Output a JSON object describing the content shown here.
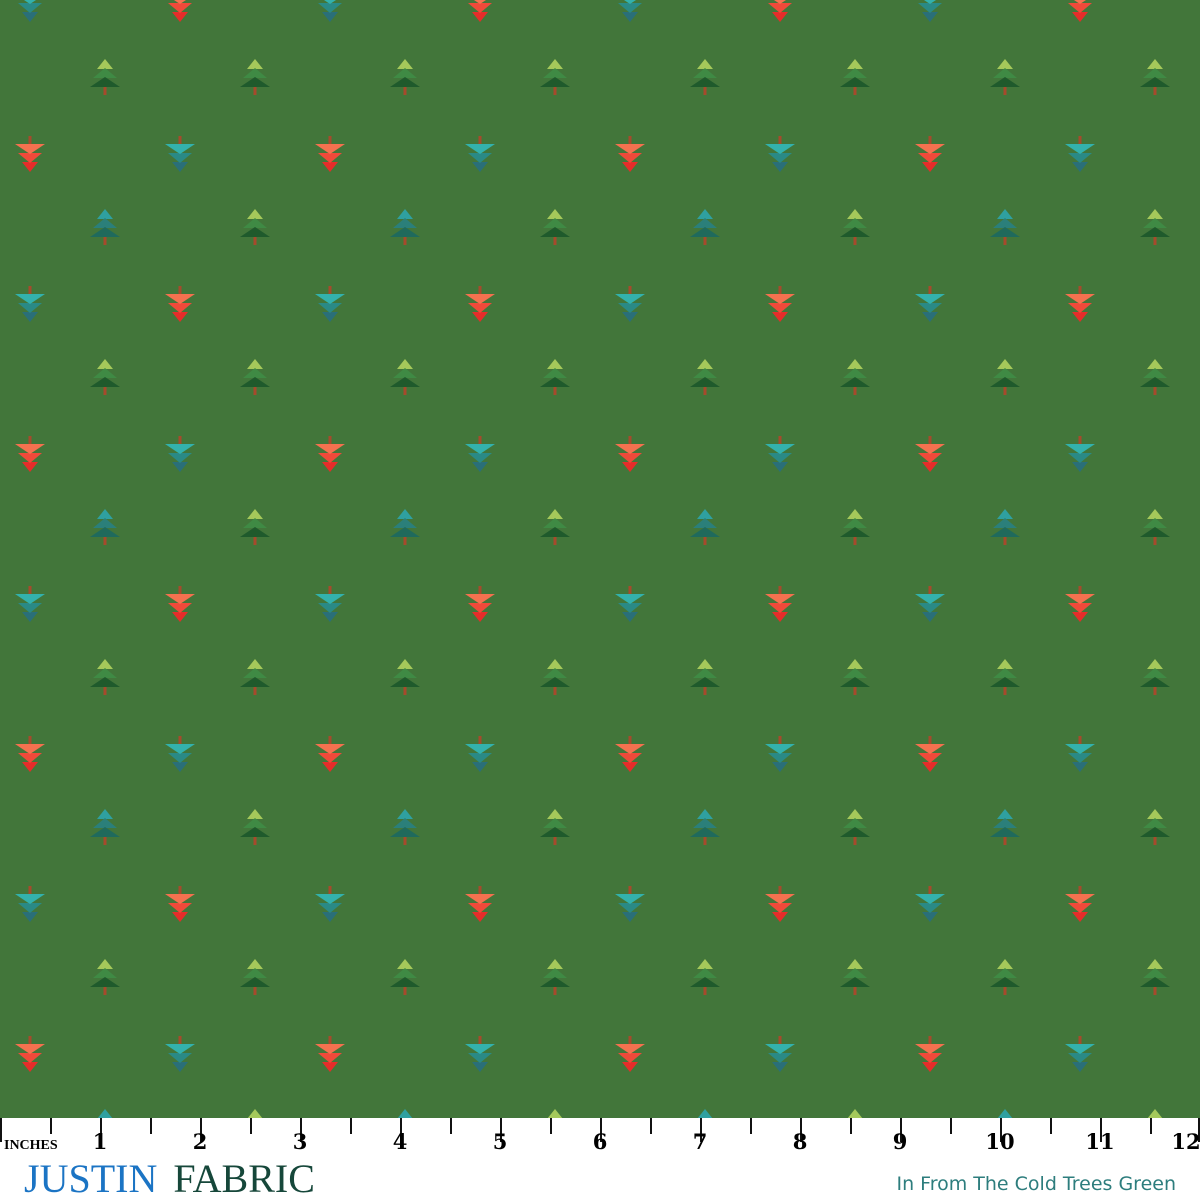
{
  "fabric": {
    "background": "#42763a",
    "palettes": {
      "green": [
        "#a4c85a",
        "#3f8a44",
        "#1f5a2c"
      ],
      "teal": [
        "#2fa0a0",
        "#2b7f7a",
        "#1f6a5c"
      ],
      "red": [
        "#e42d2a",
        "#ef4a3a",
        "#f4714f"
      ],
      "tealdown": [
        "#2a6f78",
        "#2a8a86",
        "#33b1ac"
      ],
      "trunk": "#a64a2c"
    }
  },
  "ruler": {
    "unit_label": "INCHES",
    "numbers": [
      "1",
      "2",
      "3",
      "4",
      "5",
      "6",
      "7",
      "8",
      "9",
      "10",
      "11",
      "12"
    ]
  },
  "logo": {
    "part1": "JUSTIN",
    "part2": "FABRIC"
  },
  "caption": "In From The Cold Trees Green"
}
